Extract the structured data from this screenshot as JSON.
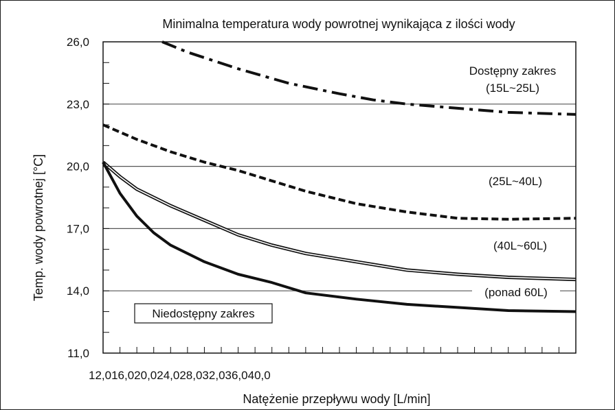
{
  "chart_data": {
    "type": "line",
    "title": "Minimalna temperatura wody powrotnej wynikająca z ilości wody",
    "xlabel": "Natężenie przepływu wody [L/min]",
    "ylabel": "Temp. wody powrotnej [°C]",
    "x_tick_labels": "12,016,020,024,028,032,036,040,0",
    "y_ticks": [
      "26,0",
      "23,0",
      "20,0",
      "17,0",
      "14,0",
      "11,0"
    ],
    "xlim": [
      12,
      40
    ],
    "ylim": [
      11,
      26
    ],
    "grid": "horizontal",
    "series": [
      {
        "name": "(15L~25L)",
        "style": "dashdot",
        "x": [
          15.5,
          17.0,
          20.0,
          23.0,
          26.0,
          28.0,
          30.0,
          33.0,
          36.0,
          40.0
        ],
        "y": [
          26.0,
          25.5,
          24.7,
          24.0,
          23.5,
          23.2,
          23.0,
          22.8,
          22.6,
          22.5
        ]
      },
      {
        "name": "(25L~40L)",
        "style": "dashed",
        "x": [
          12.0,
          14.0,
          16.0,
          18.0,
          20.0,
          22.0,
          24.0,
          27.0,
          30.0,
          33.0,
          36.0,
          40.0
        ],
        "y": [
          22.0,
          21.3,
          20.7,
          20.2,
          19.8,
          19.3,
          18.8,
          18.2,
          17.8,
          17.5,
          17.45,
          17.5
        ]
      },
      {
        "name": "(40L~60L)",
        "style": "double",
        "x": [
          12.0,
          13.0,
          14.0,
          16.0,
          18.0,
          20.0,
          22.0,
          24.0,
          27.0,
          30.0,
          33.0,
          36.0,
          40.0
        ],
        "y": [
          20.2,
          19.5,
          18.9,
          18.1,
          17.4,
          16.7,
          16.2,
          15.8,
          15.4,
          15.0,
          14.8,
          14.65,
          14.55
        ]
      },
      {
        "name": "(ponad 60L)",
        "style": "thick",
        "x": [
          12.0,
          13.0,
          14.0,
          15.0,
          16.0,
          18.0,
          20.0,
          22.0,
          24.0,
          27.0,
          30.0,
          33.0,
          36.0,
          40.0
        ],
        "y": [
          20.2,
          18.7,
          17.6,
          16.8,
          16.2,
          15.4,
          14.8,
          14.4,
          13.9,
          13.6,
          13.35,
          13.2,
          13.05,
          13.0
        ]
      }
    ],
    "annotations": {
      "available": "Dostępny zakres",
      "range1": "(15L~25L)",
      "range2": "(25L~40L)",
      "range3": "(40L~60L)",
      "range4": "(ponad 60L)",
      "unavailable": "Niedostępny zakres"
    },
    "colors": {
      "line": "#111111",
      "grid": "#555555",
      "background": "#ffffff"
    }
  }
}
